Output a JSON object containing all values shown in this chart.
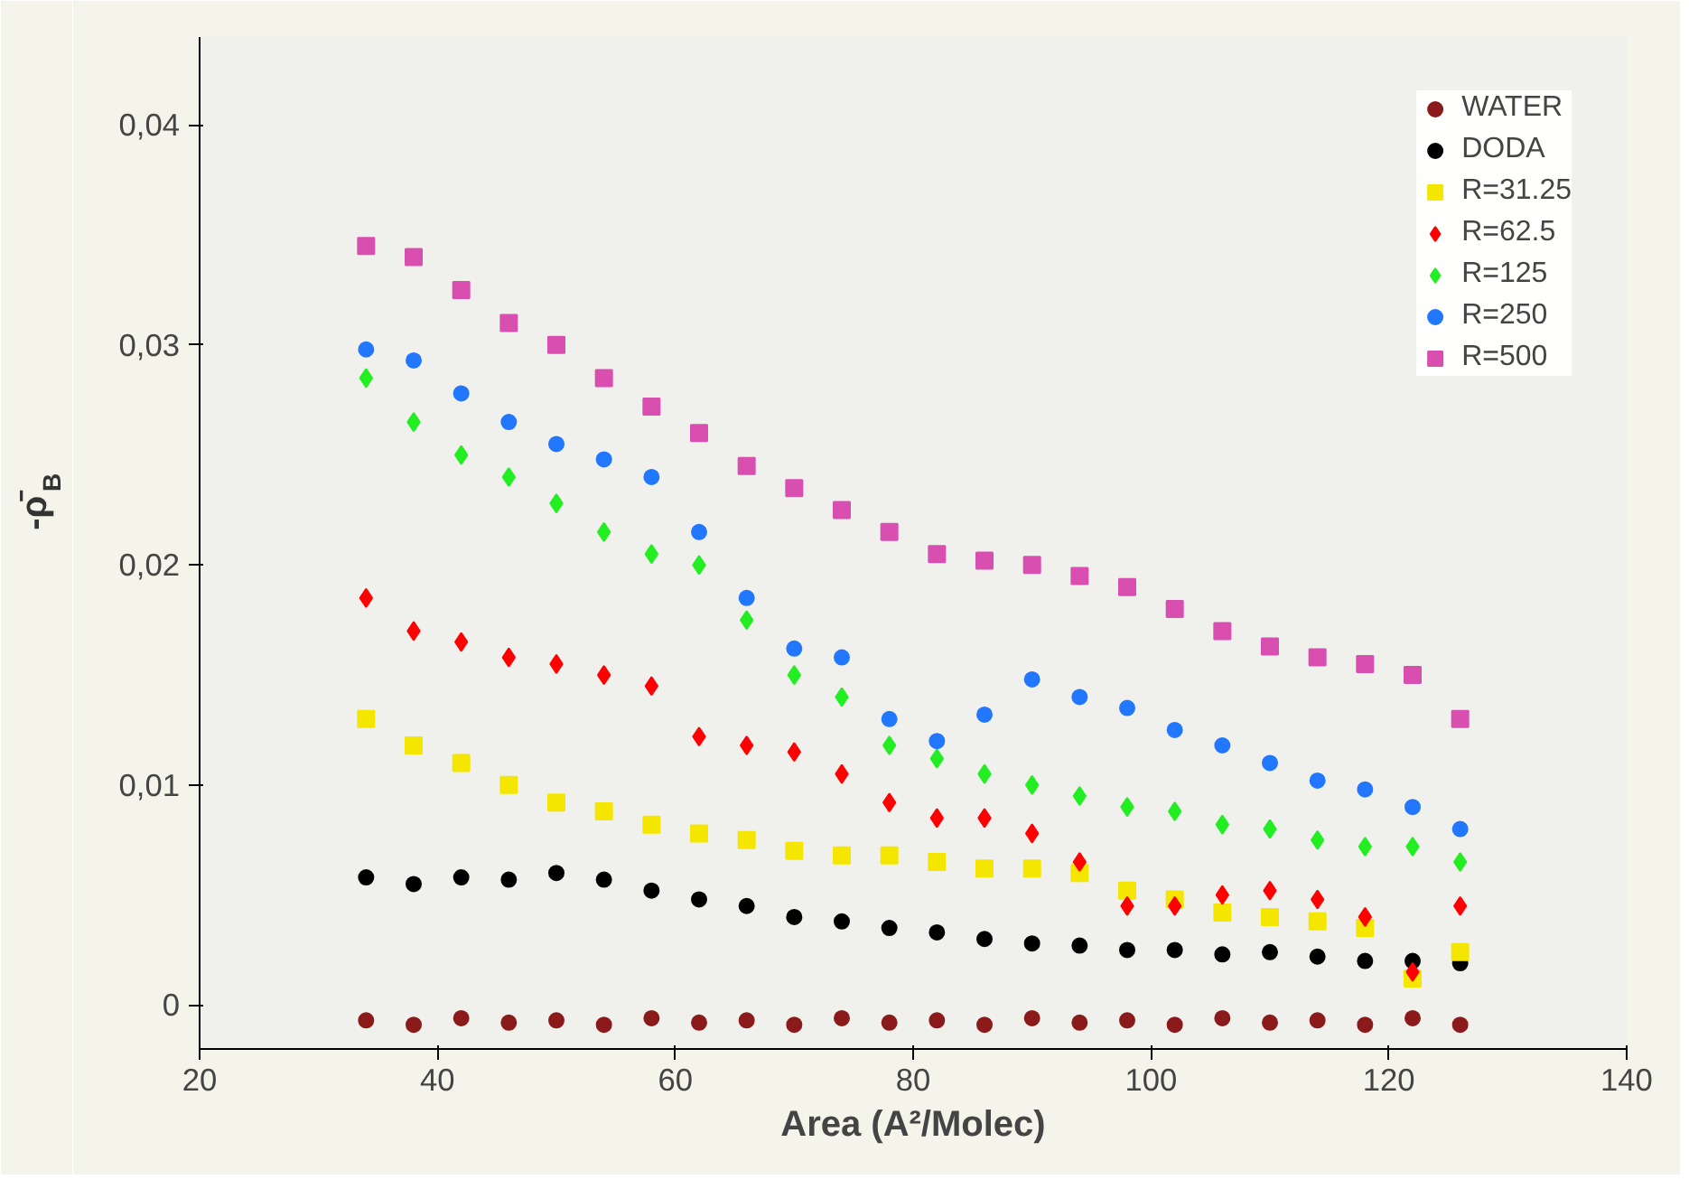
{
  "chart_data": {
    "type": "scatter",
    "xlabel": "Area (A²/Molec)",
    "ylabel": "-ρ̄$_{B}$",
    "x": [
      34,
      38,
      42,
      46,
      50,
      54,
      58,
      62,
      66,
      70,
      74,
      78,
      82,
      86,
      90,
      94,
      98,
      102,
      106,
      110,
      114,
      118,
      122,
      126
    ],
    "xlim": [
      20,
      140
    ],
    "xticks": [
      20,
      40,
      60,
      80,
      100,
      120,
      140
    ],
    "ylim": [
      -0.002,
      0.044
    ],
    "yticks": [
      0,
      {
        "value": 0.01,
        "label": "0,01"
      },
      {
        "value": 0.02,
        "label": "0,02"
      },
      {
        "value": 0.03,
        "label": "0,03"
      },
      {
        "value": 0.04,
        "label": "0,04"
      }
    ],
    "legend": "top right",
    "series": [
      {
        "name": "WATER",
        "color": "#8b1a1a",
        "marker": "circle",
        "values": [
          -0.0007,
          -0.0009,
          -0.0006,
          -0.0008,
          -0.0007,
          -0.0009,
          -0.0006,
          -0.0008,
          -0.0007,
          -0.0009,
          -0.0006,
          -0.0008,
          -0.0007,
          -0.0009,
          -0.0006,
          -0.0008,
          -0.0007,
          -0.0009,
          -0.0006,
          -0.0008,
          -0.0007,
          -0.0009,
          -0.0006,
          -0.0009
        ]
      },
      {
        "name": "DODA",
        "color": "#000000",
        "marker": "circle",
        "values": [
          0.0058,
          0.0055,
          0.0058,
          0.0057,
          0.006,
          0.0057,
          0.0052,
          0.0048,
          0.0045,
          0.004,
          0.0038,
          0.0035,
          0.0033,
          0.003,
          0.0028,
          0.0027,
          0.0025,
          0.0025,
          0.0023,
          0.0024,
          0.0022,
          0.002,
          0.002,
          0.0019
        ]
      },
      {
        "name": "R=31.25",
        "color": "#f5e600",
        "marker": "square",
        "values": [
          0.013,
          0.0118,
          0.011,
          0.01,
          0.0092,
          0.0088,
          0.0082,
          0.0078,
          0.0075,
          0.007,
          0.0068,
          0.0068,
          0.0065,
          0.0062,
          0.0062,
          0.006,
          0.0052,
          0.0048,
          0.0042,
          0.004,
          0.0038,
          0.0035,
          0.0012,
          0.0024
        ]
      },
      {
        "name": "R=62.5",
        "color": "#ff0000",
        "marker": "diamond",
        "values": [
          0.0185,
          0.017,
          0.0165,
          0.0158,
          0.0155,
          0.015,
          0.0145,
          0.0122,
          0.0118,
          0.0115,
          0.0105,
          0.0092,
          0.0085,
          0.0085,
          0.0078,
          0.0065,
          0.0045,
          0.0045,
          0.005,
          0.0052,
          0.0048,
          0.004,
          0.0015,
          0.0045
        ]
      },
      {
        "name": "R=125",
        "color": "#22ee22",
        "marker": "diamond",
        "values": [
          0.0285,
          0.0265,
          0.025,
          0.024,
          0.0228,
          0.0215,
          0.0205,
          0.02,
          0.0175,
          0.015,
          0.014,
          0.0118,
          0.0112,
          0.0105,
          0.01,
          0.0095,
          0.009,
          0.0088,
          0.0082,
          0.008,
          0.0075,
          0.0072,
          0.0072,
          0.0065
        ]
      },
      {
        "name": "R=250",
        "color": "#2277ff",
        "marker": "circle",
        "values": [
          0.0298,
          0.0293,
          0.0278,
          0.0265,
          0.0255,
          0.0248,
          0.024,
          0.0215,
          0.0185,
          0.0162,
          0.0158,
          0.013,
          0.012,
          0.0132,
          0.0148,
          0.014,
          0.0135,
          0.0125,
          0.0118,
          0.011,
          0.0102,
          0.0098,
          0.009,
          0.008
        ]
      },
      {
        "name": "R=500",
        "color": "#d94fb0",
        "marker": "square",
        "values": [
          0.0345,
          0.034,
          0.0325,
          0.031,
          0.03,
          0.0285,
          0.0272,
          0.026,
          0.0245,
          0.0235,
          0.0225,
          0.0215,
          0.0205,
          0.0202,
          0.02,
          0.0195,
          0.019,
          0.018,
          0.017,
          0.0163,
          0.0158,
          0.0155,
          0.015,
          0.013
        ]
      }
    ]
  }
}
